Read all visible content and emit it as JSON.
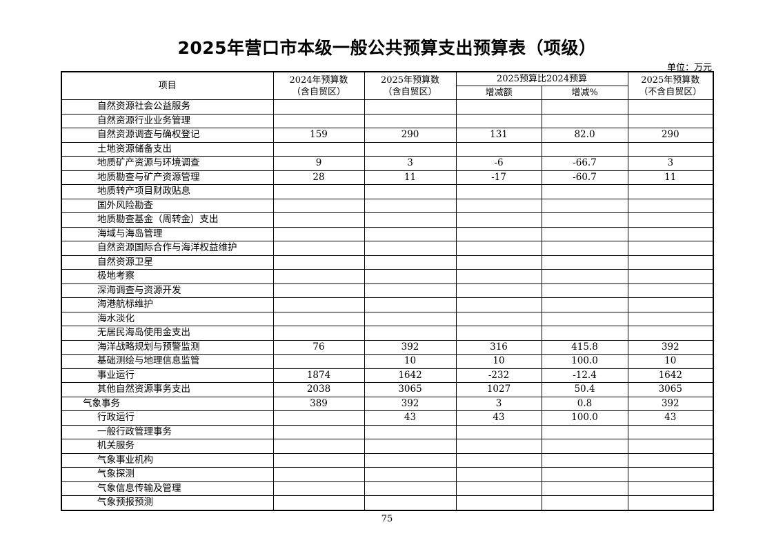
{
  "title": "2025年营口市本级一般公共预算支出预算表（项级）",
  "unit": "单位：万元",
  "headers": {
    "item": "项目",
    "col2024": "2024年预算数",
    "col2024_sub": "（含自贸区）",
    "col2025": "2025年预算数",
    "col2025_sub": "（含自贸区）",
    "compare": "2025预算比2024预算",
    "change_amount": "增减额",
    "change_pct": "增减%",
    "col2025_excl": "2025年预算数",
    "col2025_excl_sub": "（不含自贸区）"
  },
  "rows": [
    {
      "name": "自然资源社会公益服务",
      "level": 2,
      "v2024": "",
      "v2025": "",
      "diff": "",
      "pct": "",
      "excl": ""
    },
    {
      "name": "自然资源行业业务管理",
      "level": 2,
      "v2024": "",
      "v2025": "",
      "diff": "",
      "pct": "",
      "excl": ""
    },
    {
      "name": "自然资源调查与确权登记",
      "level": 2,
      "v2024": "159",
      "v2025": "290",
      "diff": "131",
      "pct": "82.0",
      "excl": "290"
    },
    {
      "name": "土地资源储备支出",
      "level": 2,
      "v2024": "",
      "v2025": "",
      "diff": "",
      "pct": "",
      "excl": ""
    },
    {
      "name": "地质矿产资源与环境调查",
      "level": 2,
      "v2024": "9",
      "v2025": "3",
      "diff": "-6",
      "pct": "-66.7",
      "excl": "3"
    },
    {
      "name": "地质勘查与矿产资源管理",
      "level": 2,
      "v2024": "28",
      "v2025": "11",
      "diff": "-17",
      "pct": "-60.7",
      "excl": "11"
    },
    {
      "name": "地质转产项目财政贴息",
      "level": 2,
      "v2024": "",
      "v2025": "",
      "diff": "",
      "pct": "",
      "excl": ""
    },
    {
      "name": "国外风险勘查",
      "level": 2,
      "v2024": "",
      "v2025": "",
      "diff": "",
      "pct": "",
      "excl": ""
    },
    {
      "name": "地质勘查基金（周转金）支出",
      "level": 2,
      "v2024": "",
      "v2025": "",
      "diff": "",
      "pct": "",
      "excl": ""
    },
    {
      "name": "海域与海岛管理",
      "level": 2,
      "v2024": "",
      "v2025": "",
      "diff": "",
      "pct": "",
      "excl": ""
    },
    {
      "name": "自然资源国际合作与海洋权益维护",
      "level": 2,
      "v2024": "",
      "v2025": "",
      "diff": "",
      "pct": "",
      "excl": ""
    },
    {
      "name": "自然资源卫星",
      "level": 2,
      "v2024": "",
      "v2025": "",
      "diff": "",
      "pct": "",
      "excl": ""
    },
    {
      "name": "极地考察",
      "level": 2,
      "v2024": "",
      "v2025": "",
      "diff": "",
      "pct": "",
      "excl": ""
    },
    {
      "name": "深海调查与资源开发",
      "level": 2,
      "v2024": "",
      "v2025": "",
      "diff": "",
      "pct": "",
      "excl": ""
    },
    {
      "name": "海港航标维护",
      "level": 2,
      "v2024": "",
      "v2025": "",
      "diff": "",
      "pct": "",
      "excl": ""
    },
    {
      "name": "海水淡化",
      "level": 2,
      "v2024": "",
      "v2025": "",
      "diff": "",
      "pct": "",
      "excl": ""
    },
    {
      "name": "无居民海岛使用金支出",
      "level": 2,
      "v2024": "",
      "v2025": "",
      "diff": "",
      "pct": "",
      "excl": ""
    },
    {
      "name": "海洋战略规划与预警监测",
      "level": 2,
      "v2024": "76",
      "v2025": "392",
      "diff": "316",
      "pct": "415.8",
      "excl": "392"
    },
    {
      "name": "基础测绘与地理信息监管",
      "level": 2,
      "v2024": "",
      "v2025": "10",
      "diff": "10",
      "pct": "100.0",
      "excl": "10"
    },
    {
      "name": "事业运行",
      "level": 2,
      "v2024": "1874",
      "v2025": "1642",
      "diff": "-232",
      "pct": "-12.4",
      "excl": "1642"
    },
    {
      "name": "其他自然资源事务支出",
      "level": 2,
      "v2024": "2038",
      "v2025": "3065",
      "diff": "1027",
      "pct": "50.4",
      "excl": "3065"
    },
    {
      "name": "气象事务",
      "level": 1,
      "v2024": "389",
      "v2025": "392",
      "diff": "3",
      "pct": "0.8",
      "excl": "392"
    },
    {
      "name": "行政运行",
      "level": 2,
      "v2024": "",
      "v2025": "43",
      "diff": "43",
      "pct": "100.0",
      "excl": "43"
    },
    {
      "name": "一般行政管理事务",
      "level": 2,
      "v2024": "",
      "v2025": "",
      "diff": "",
      "pct": "",
      "excl": ""
    },
    {
      "name": "机关服务",
      "level": 2,
      "v2024": "",
      "v2025": "",
      "diff": "",
      "pct": "",
      "excl": ""
    },
    {
      "name": "气象事业机构",
      "level": 2,
      "v2024": "",
      "v2025": "",
      "diff": "",
      "pct": "",
      "excl": ""
    },
    {
      "name": "气象探测",
      "level": 2,
      "v2024": "",
      "v2025": "",
      "diff": "",
      "pct": "",
      "excl": ""
    },
    {
      "name": "气象信息传输及管理",
      "level": 2,
      "v2024": "",
      "v2025": "",
      "diff": "",
      "pct": "",
      "excl": ""
    },
    {
      "name": "气象预报预测",
      "level": 2,
      "v2024": "",
      "v2025": "",
      "diff": "",
      "pct": "",
      "excl": ""
    }
  ],
  "page_number": "75"
}
